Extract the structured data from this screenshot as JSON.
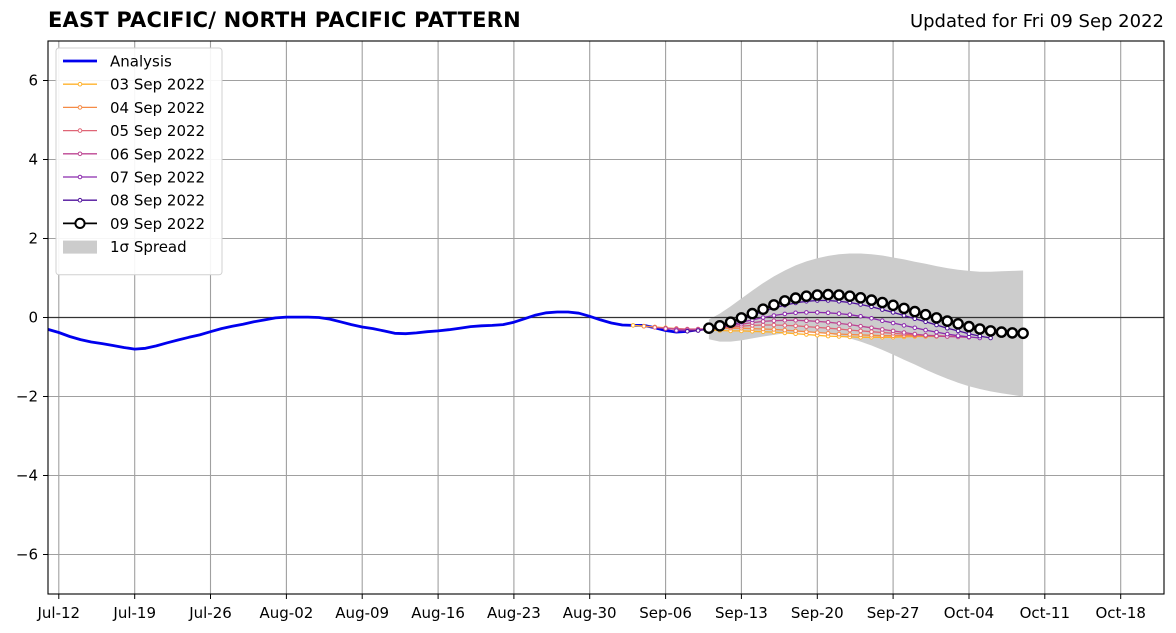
{
  "chart_data": {
    "type": "line",
    "title": "EAST PACIFIC/ NORTH PACIFIC PATTERN",
    "subtitle": "Updated for Fri 09 Sep 2022",
    "x_axis": {
      "type": "date",
      "range": [
        "2022-07-11",
        "2022-10-22"
      ],
      "ticks": [
        {
          "date": "2022-07-12",
          "label": "Jul-12"
        },
        {
          "date": "2022-07-19",
          "label": "Jul-19"
        },
        {
          "date": "2022-07-26",
          "label": "Jul-26"
        },
        {
          "date": "2022-08-02",
          "label": "Aug-02"
        },
        {
          "date": "2022-08-09",
          "label": "Aug-09"
        },
        {
          "date": "2022-08-16",
          "label": "Aug-16"
        },
        {
          "date": "2022-08-23",
          "label": "Aug-23"
        },
        {
          "date": "2022-08-30",
          "label": "Aug-30"
        },
        {
          "date": "2022-09-06",
          "label": "Sep-06"
        },
        {
          "date": "2022-09-13",
          "label": "Sep-13"
        },
        {
          "date": "2022-09-20",
          "label": "Sep-20"
        },
        {
          "date": "2022-09-27",
          "label": "Sep-27"
        },
        {
          "date": "2022-10-04",
          "label": "Oct-04"
        },
        {
          "date": "2022-10-11",
          "label": "Oct-11"
        },
        {
          "date": "2022-10-18",
          "label": "Oct-18"
        }
      ]
    },
    "y_axis": {
      "ylim": [
        -7,
        7
      ],
      "ticks": [
        {
          "value": -6,
          "label": "−6"
        },
        {
          "value": -4,
          "label": "−4"
        },
        {
          "value": -2,
          "label": "−2"
        },
        {
          "value": 0,
          "label": "0"
        },
        {
          "value": 2,
          "label": "2"
        },
        {
          "value": 4,
          "label": "4"
        },
        {
          "value": 6,
          "label": "6"
        }
      ]
    },
    "grid": true,
    "zero_line": true,
    "legend_position": "top-left",
    "analysis": {
      "name": "Analysis",
      "color": "#0000ee",
      "points": [
        [
          "2022-07-11",
          -0.3
        ],
        [
          "2022-07-12",
          -0.38
        ],
        [
          "2022-07-13",
          -0.48
        ],
        [
          "2022-07-14",
          -0.56
        ],
        [
          "2022-07-15",
          -0.62
        ],
        [
          "2022-07-16",
          -0.66
        ],
        [
          "2022-07-17",
          -0.71
        ],
        [
          "2022-07-18",
          -0.76
        ],
        [
          "2022-07-19",
          -0.8
        ],
        [
          "2022-07-20",
          -0.78
        ],
        [
          "2022-07-21",
          -0.72
        ],
        [
          "2022-07-22",
          -0.64
        ],
        [
          "2022-07-23",
          -0.57
        ],
        [
          "2022-07-24",
          -0.5
        ],
        [
          "2022-07-25",
          -0.44
        ],
        [
          "2022-07-26",
          -0.36
        ],
        [
          "2022-07-27",
          -0.28
        ],
        [
          "2022-07-28",
          -0.22
        ],
        [
          "2022-07-29",
          -0.17
        ],
        [
          "2022-07-30",
          -0.11
        ],
        [
          "2022-07-31",
          -0.06
        ],
        [
          "2022-08-01",
          -0.01
        ],
        [
          "2022-08-02",
          0.01
        ],
        [
          "2022-08-03",
          0.01
        ],
        [
          "2022-08-04",
          0.01
        ],
        [
          "2022-08-05",
          0.0
        ],
        [
          "2022-08-06",
          -0.04
        ],
        [
          "2022-08-07",
          -0.11
        ],
        [
          "2022-08-08",
          -0.18
        ],
        [
          "2022-08-09",
          -0.24
        ],
        [
          "2022-08-10",
          -0.28
        ],
        [
          "2022-08-11",
          -0.34
        ],
        [
          "2022-08-12",
          -0.4
        ],
        [
          "2022-08-13",
          -0.41
        ],
        [
          "2022-08-14",
          -0.39
        ],
        [
          "2022-08-15",
          -0.36
        ],
        [
          "2022-08-16",
          -0.34
        ],
        [
          "2022-08-17",
          -0.31
        ],
        [
          "2022-08-18",
          -0.27
        ],
        [
          "2022-08-19",
          -0.23
        ],
        [
          "2022-08-20",
          -0.21
        ],
        [
          "2022-08-21",
          -0.2
        ],
        [
          "2022-08-22",
          -0.18
        ],
        [
          "2022-08-23",
          -0.12
        ],
        [
          "2022-08-24",
          -0.03
        ],
        [
          "2022-08-25",
          0.06
        ],
        [
          "2022-08-26",
          0.12
        ],
        [
          "2022-08-27",
          0.14
        ],
        [
          "2022-08-28",
          0.14
        ],
        [
          "2022-08-29",
          0.11
        ],
        [
          "2022-08-30",
          0.03
        ],
        [
          "2022-08-31",
          -0.06
        ],
        [
          "2022-09-01",
          -0.14
        ],
        [
          "2022-09-02",
          -0.19
        ],
        [
          "2022-09-03",
          -0.2
        ],
        [
          "2022-09-04",
          -0.2
        ],
        [
          "2022-09-05",
          -0.26
        ],
        [
          "2022-09-06",
          -0.33
        ],
        [
          "2022-09-07",
          -0.37
        ],
        [
          "2022-09-08",
          -0.35
        ],
        [
          "2022-09-09",
          -0.31
        ]
      ]
    },
    "forecasts": [
      {
        "name": "03 Sep 2022",
        "color": "#ffb22c",
        "start": "2022-09-03",
        "values": [
          -0.2,
          -0.22,
          -0.24,
          -0.26,
          -0.28,
          -0.3,
          -0.31,
          -0.32,
          -0.33,
          -0.34,
          -0.34,
          -0.35,
          -0.36,
          -0.37,
          -0.39,
          -0.41,
          -0.43,
          -0.45,
          -0.47,
          -0.48,
          -0.49,
          -0.5,
          -0.5,
          -0.5,
          -0.5,
          -0.49,
          -0.48,
          -0.48,
          -0.48
        ]
      },
      {
        "name": "04 Sep 2022",
        "color": "#f58b47",
        "start": "2022-09-04",
        "values": [
          -0.22,
          -0.24,
          -0.27,
          -0.29,
          -0.3,
          -0.3,
          -0.29,
          -0.28,
          -0.27,
          -0.27,
          -0.28,
          -0.29,
          -0.3,
          -0.32,
          -0.34,
          -0.36,
          -0.38,
          -0.4,
          -0.42,
          -0.43,
          -0.44,
          -0.45,
          -0.46,
          -0.46,
          -0.46,
          -0.46,
          -0.47,
          -0.47,
          -0.48
        ]
      },
      {
        "name": "05 Sep 2022",
        "color": "#df6576",
        "start": "2022-09-05",
        "values": [
          -0.25,
          -0.27,
          -0.28,
          -0.29,
          -0.29,
          -0.28,
          -0.26,
          -0.24,
          -0.22,
          -0.2,
          -0.19,
          -0.19,
          -0.2,
          -0.21,
          -0.23,
          -0.25,
          -0.27,
          -0.29,
          -0.32,
          -0.34,
          -0.36,
          -0.38,
          -0.4,
          -0.42,
          -0.44,
          -0.45,
          -0.46,
          -0.47,
          -0.48
        ]
      },
      {
        "name": "06 Sep 2022",
        "color": "#bd4592",
        "start": "2022-09-06",
        "values": [
          -0.28,
          -0.3,
          -0.31,
          -0.3,
          -0.28,
          -0.25,
          -0.21,
          -0.17,
          -0.13,
          -0.1,
          -0.08,
          -0.07,
          -0.07,
          -0.08,
          -0.1,
          -0.12,
          -0.15,
          -0.18,
          -0.22,
          -0.26,
          -0.3,
          -0.34,
          -0.38,
          -0.42,
          -0.45,
          -0.47,
          -0.48,
          -0.49,
          -0.5
        ]
      },
      {
        "name": "07 Sep 2022",
        "color": "#8b2aad",
        "start": "2022-09-07",
        "values": [
          -0.33,
          -0.34,
          -0.33,
          -0.3,
          -0.25,
          -0.19,
          -0.12,
          -0.06,
          0.0,
          0.05,
          0.09,
          0.12,
          0.13,
          0.13,
          0.12,
          0.1,
          0.07,
          0.03,
          -0.02,
          -0.08,
          -0.14,
          -0.2,
          -0.26,
          -0.32,
          -0.37,
          -0.42,
          -0.46,
          -0.49,
          -0.52
        ]
      },
      {
        "name": "08 Sep 2022",
        "color": "#4e119b",
        "start": "2022-09-08",
        "values": [
          -0.35,
          -0.33,
          -0.28,
          -0.21,
          -0.13,
          -0.04,
          0.06,
          0.15,
          0.24,
          0.31,
          0.37,
          0.41,
          0.43,
          0.43,
          0.41,
          0.38,
          0.33,
          0.27,
          0.2,
          0.13,
          0.05,
          -0.03,
          -0.11,
          -0.19,
          -0.27,
          -0.34,
          -0.41,
          -0.47,
          -0.52
        ]
      },
      {
        "name": "09 Sep 2022",
        "color": "#000000",
        "start": "2022-09-10",
        "values": [
          -0.27,
          -0.21,
          -0.12,
          -0.01,
          0.1,
          0.21,
          0.32,
          0.42,
          0.49,
          0.54,
          0.57,
          0.58,
          0.57,
          0.54,
          0.5,
          0.44,
          0.38,
          0.31,
          0.23,
          0.15,
          0.07,
          -0.01,
          -0.09,
          -0.16,
          -0.23,
          -0.29,
          -0.34,
          -0.37,
          -0.39,
          -0.4
        ]
      }
    ],
    "spread": {
      "name": "1σ Spread",
      "color": "#cccccc",
      "start": "2022-09-10",
      "upper": [
        -0.05,
        0.1,
        0.28,
        0.48,
        0.68,
        0.87,
        1.04,
        1.19,
        1.32,
        1.42,
        1.5,
        1.56,
        1.6,
        1.62,
        1.62,
        1.6,
        1.57,
        1.52,
        1.47,
        1.41,
        1.36,
        1.3,
        1.25,
        1.21,
        1.18,
        1.16,
        1.16,
        1.17,
        1.18,
        1.19
      ],
      "lower": [
        -0.55,
        -0.61,
        -0.61,
        -0.58,
        -0.53,
        -0.48,
        -0.44,
        -0.4,
        -0.38,
        -0.37,
        -0.38,
        -0.41,
        -0.46,
        -0.53,
        -0.61,
        -0.71,
        -0.82,
        -0.94,
        -1.07,
        -1.19,
        -1.32,
        -1.44,
        -1.55,
        -1.65,
        -1.74,
        -1.81,
        -1.87,
        -1.92,
        -1.96,
        -2.0
      ]
    }
  }
}
